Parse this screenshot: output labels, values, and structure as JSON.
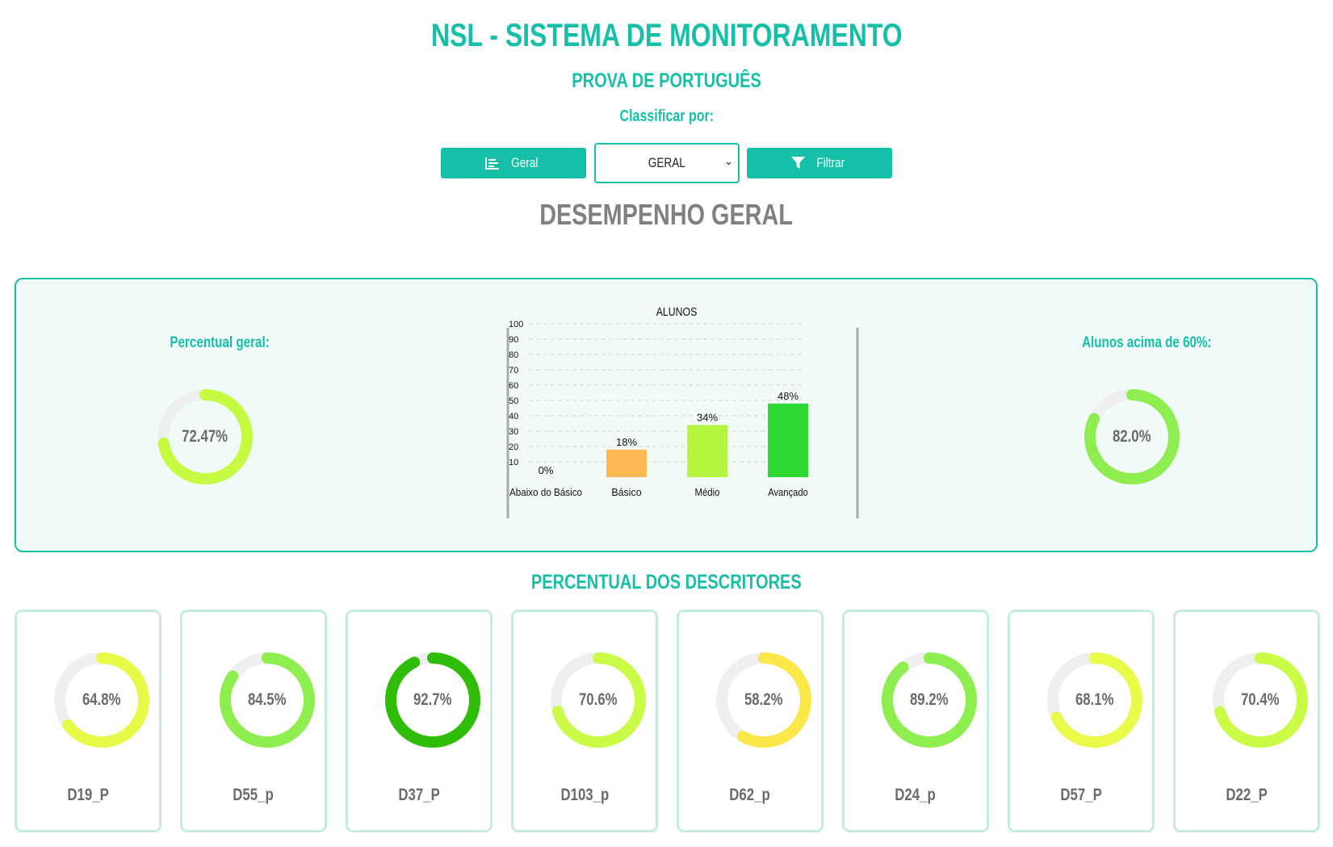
{
  "header": {
    "title": "NSL - SISTEMA DE MONITORAMENTO",
    "subtitle": "PROVA DE PORTUGUÊS",
    "sort_label": "Classificar por:"
  },
  "controls": {
    "geral_button_label": "Geral",
    "geral_button_icon": "bar-chart-icon",
    "select_value": "GERAL",
    "filter_button_label": "Filtrar",
    "filter_button_icon": "filter-icon"
  },
  "section_title": "DESEMPENHO GERAL",
  "summary": {
    "overall": {
      "label": "Percentual geral:",
      "value_text": "72.47%",
      "value": 72.47,
      "color": "#c5fb41"
    },
    "above60": {
      "label": "Alunos acima de 60%:",
      "value_text": "82.0%",
      "value": 82.0,
      "color": "#8eed4f"
    }
  },
  "chart_data": {
    "type": "bar",
    "title": "ALUNOS",
    "categories": [
      "Abaixo do Básico",
      "Básico",
      "Médio",
      "Avançado"
    ],
    "values": [
      0,
      18,
      34,
      48
    ],
    "value_labels": [
      "0%",
      "18%",
      "34%",
      "48%"
    ],
    "colors": [
      "#e53935",
      "#fdb955",
      "#b5f53f",
      "#2ed935"
    ],
    "ylim": [
      0,
      100
    ],
    "yticks": [
      10,
      20,
      30,
      40,
      50,
      60,
      70,
      80,
      90,
      100
    ],
    "grid": true
  },
  "descriptors": {
    "title": "PERCENTUAL DOS DESCRITORES",
    "items": [
      {
        "name": "D19_P",
        "value_text": "64.8%",
        "value": 64.8,
        "color": "#e7fa48"
      },
      {
        "name": "D55_p",
        "value_text": "84.5%",
        "value": 84.5,
        "color": "#8eed4f"
      },
      {
        "name": "D37_P",
        "value_text": "92.7%",
        "value": 92.7,
        "color": "#2fbd0a"
      },
      {
        "name": "D103_p",
        "value_text": "70.6%",
        "value": 70.6,
        "color": "#cafc47"
      },
      {
        "name": "D62_p",
        "value_text": "58.2%",
        "value": 58.2,
        "color": "#fbe848"
      },
      {
        "name": "D24_p",
        "value_text": "89.2%",
        "value": 89.2,
        "color": "#8eed4f"
      },
      {
        "name": "D57_P",
        "value_text": "68.1%",
        "value": 68.1,
        "color": "#e9fa48"
      },
      {
        "name": "D22_P",
        "value_text": "70.4%",
        "value": 70.4,
        "color": "#cafc47"
      }
    ]
  }
}
